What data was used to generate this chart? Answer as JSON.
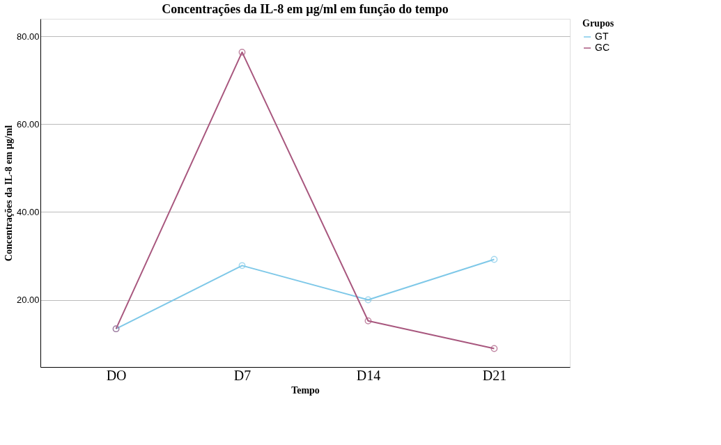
{
  "chart_data": {
    "type": "line",
    "title": "Concentrações da IL-8 em µg/ml em função do tempo",
    "xlabel": "Tempo",
    "ylabel": "Concentrações da IL-8 em µg/ml",
    "legend_title": "Grupos",
    "categories": [
      "DO",
      "D7",
      "D14",
      "D21"
    ],
    "series": [
      {
        "name": "GT",
        "color": "#7ec8e8",
        "values": [
          13.4,
          27.8,
          20.0,
          29.2
        ]
      },
      {
        "name": "GC",
        "color": "#a8577e",
        "values": [
          13.4,
          76.4,
          15.2,
          8.9
        ]
      }
    ],
    "ylim": [
      4.7,
      84
    ],
    "yticks": [
      {
        "value": 20,
        "label": "20.00"
      },
      {
        "value": 40,
        "label": "40.00"
      },
      {
        "value": 60,
        "label": "60.00"
      },
      {
        "value": 80,
        "label": "80.00"
      }
    ],
    "grid": "y",
    "legend": "top right",
    "marker": "circle",
    "line_style": "solid"
  }
}
